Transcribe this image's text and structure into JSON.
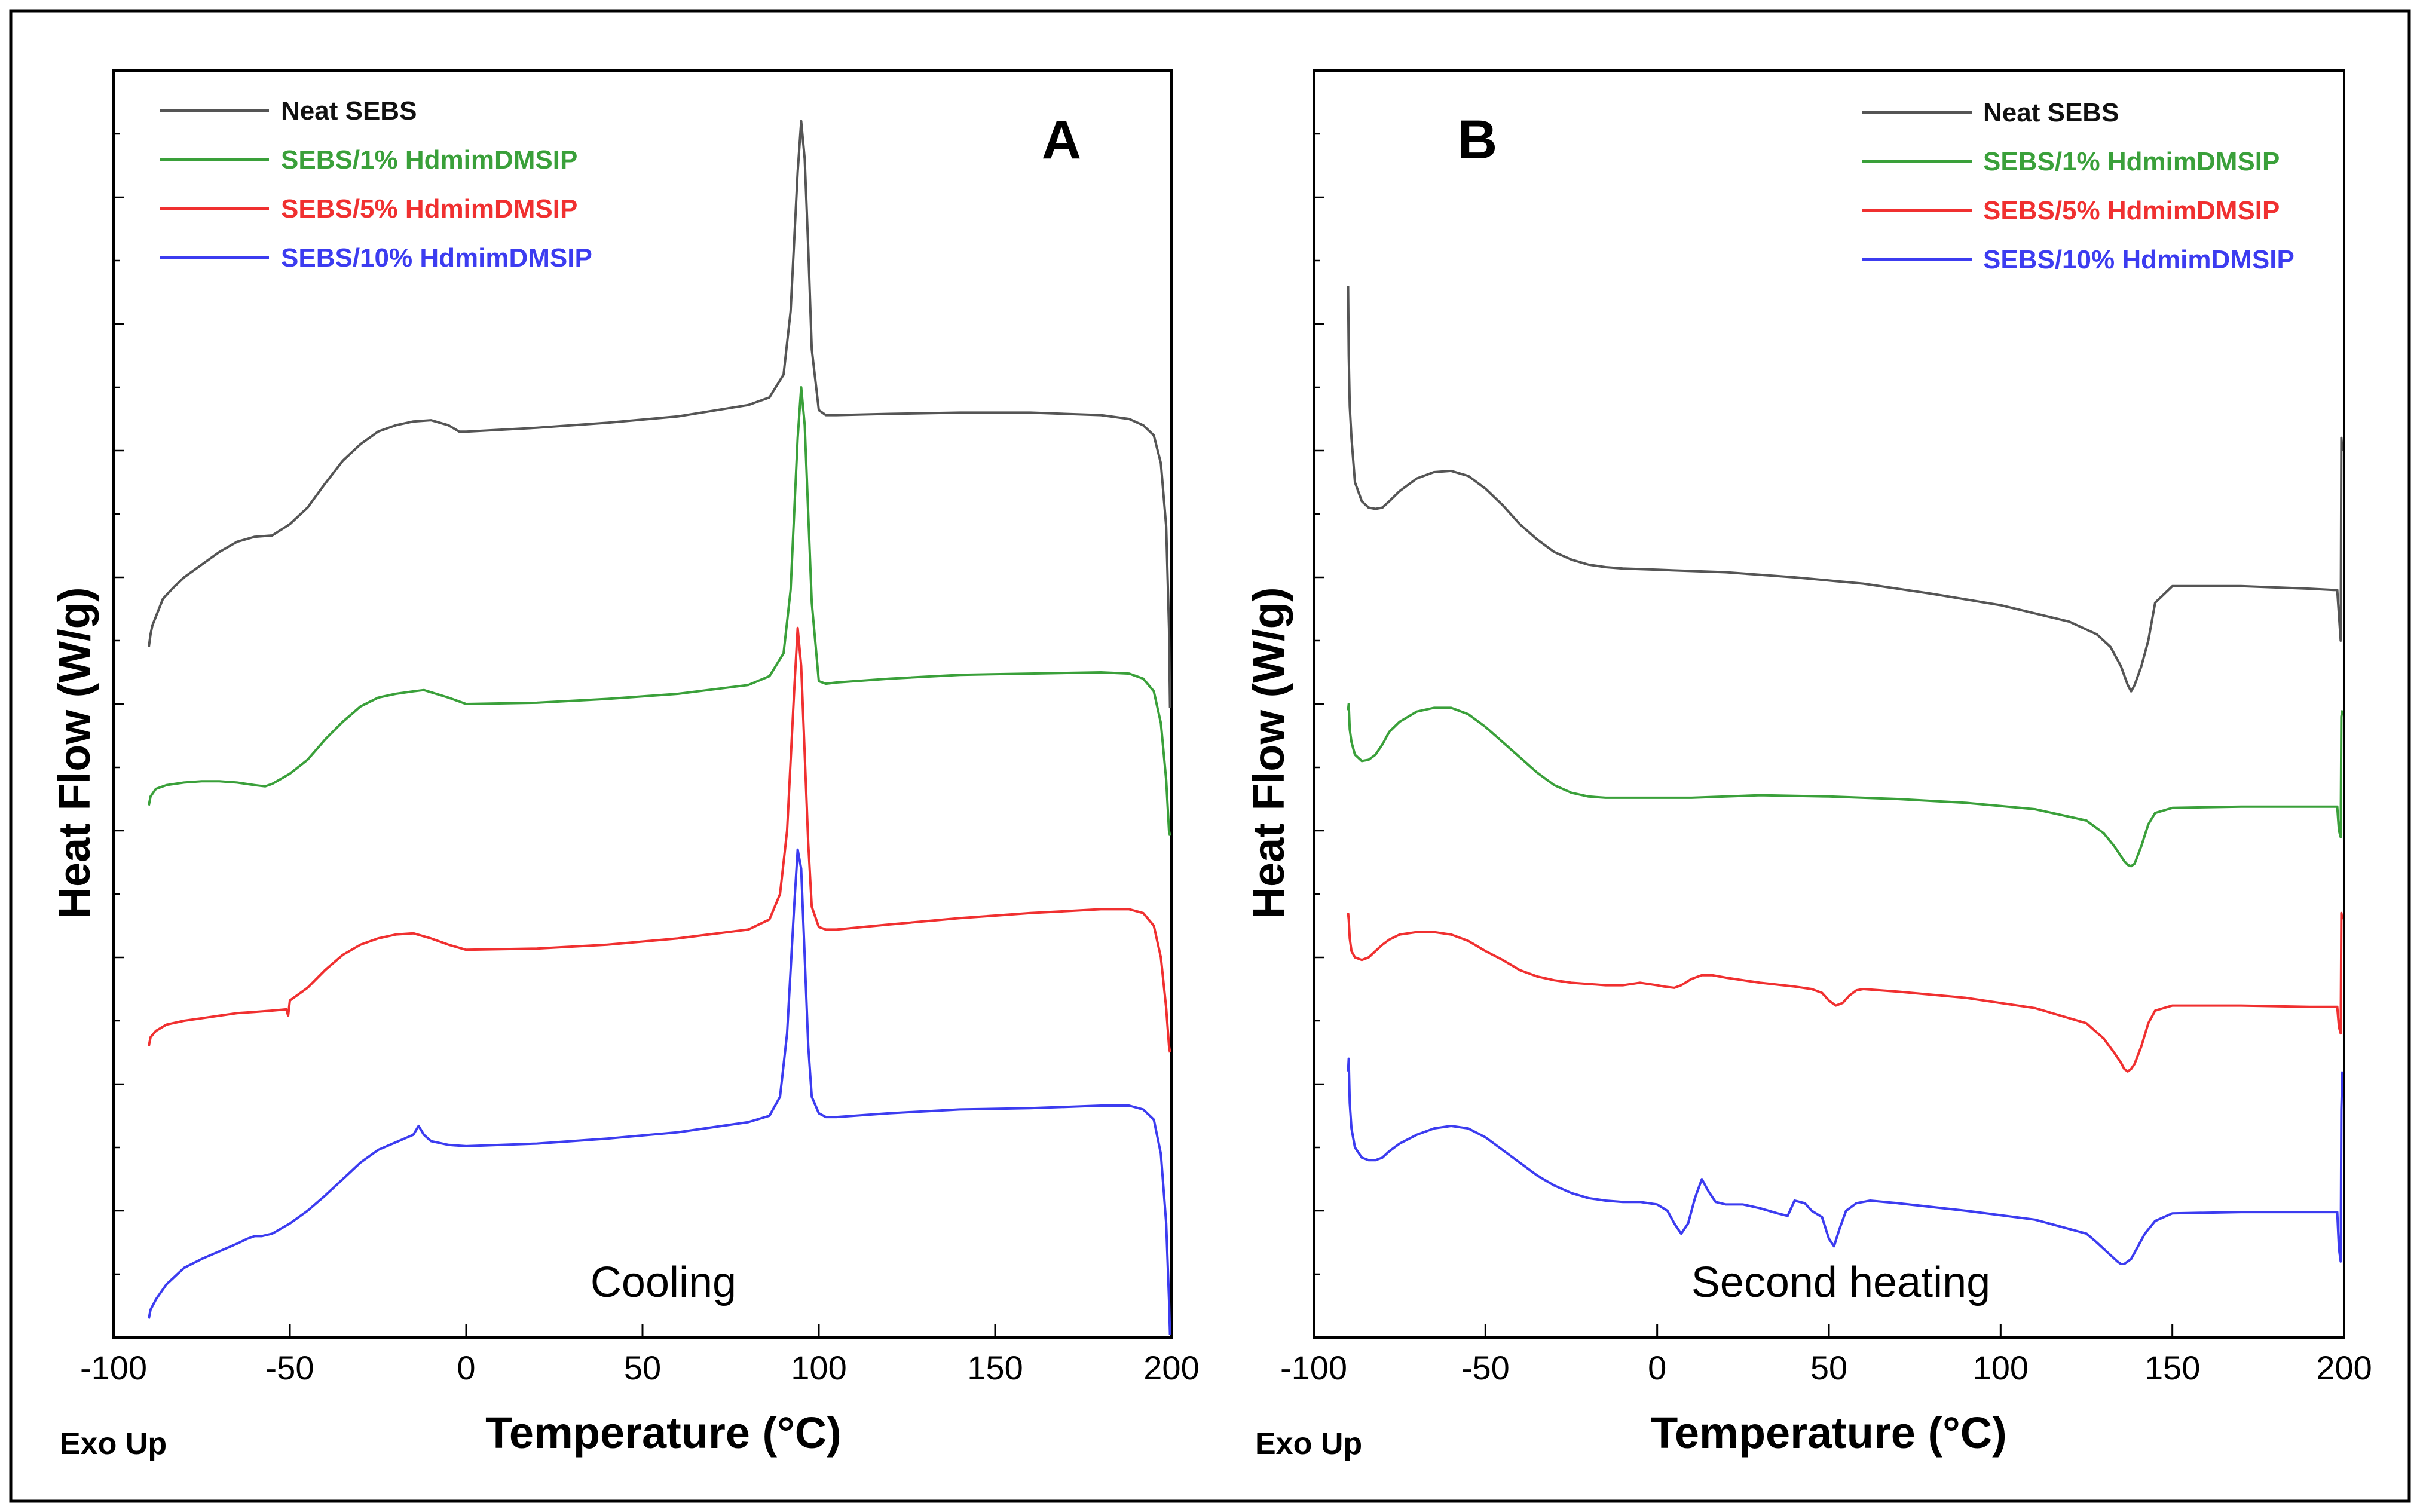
{
  "figure": {
    "ylabel": "Heat Flow (W/g)",
    "xlabel": "Temperature (°C)",
    "exo_label": "Exo Up"
  },
  "chart_data": [
    {
      "type": "line",
      "panel": "A",
      "annotation": "Cooling",
      "xlabel": "Temperature (°C)",
      "ylabel": "Heat Flow (W/g)",
      "xlim": [
        -100,
        200
      ],
      "xticks": [
        -100,
        -50,
        0,
        50,
        100,
        150,
        200
      ],
      "ylim": [
        0,
        10
      ],
      "y_ticks_labeled": false,
      "legend_position": "top-left",
      "series": [
        {
          "name": "Neat SEBS",
          "color": "#555555",
          "x": [
            -90,
            -89.5,
            -89,
            -86,
            -83,
            -80,
            -75,
            -70,
            -65,
            -60,
            -55,
            -50,
            -45,
            -40,
            -35,
            -30,
            -25,
            -20,
            -15,
            -10,
            -5,
            -2,
            0,
            20,
            40,
            60,
            80,
            86,
            90,
            92,
            94,
            95,
            96,
            97,
            98,
            100,
            102,
            105,
            120,
            140,
            160,
            180,
            188,
            192,
            195,
            197,
            198.5,
            199.3,
            199.6
          ],
          "y": [
            5.45,
            5.55,
            5.62,
            5.83,
            5.92,
            6.0,
            6.1,
            6.2,
            6.28,
            6.32,
            6.33,
            6.42,
            6.55,
            6.74,
            6.92,
            7.05,
            7.15,
            7.2,
            7.23,
            7.24,
            7.2,
            7.15,
            7.15,
            7.18,
            7.22,
            7.27,
            7.36,
            7.42,
            7.6,
            8.1,
            9.2,
            9.6,
            9.3,
            8.6,
            7.8,
            7.32,
            7.28,
            7.28,
            7.29,
            7.3,
            7.3,
            7.28,
            7.25,
            7.2,
            7.12,
            6.9,
            6.4,
            5.6,
            4.97
          ]
        },
        {
          "name": "SEBS/1% HdmimDMSIP",
          "color": "#3aa03a",
          "x": [
            -90,
            -89.5,
            -88,
            -85,
            -80,
            -75,
            -70,
            -65,
            -60,
            -57,
            -55,
            -50,
            -45,
            -40,
            -35,
            -30,
            -25,
            -20,
            -15,
            -12,
            -5,
            0,
            20,
            40,
            60,
            80,
            86,
            90,
            92,
            94,
            95,
            96,
            97,
            98,
            100,
            102,
            105,
            120,
            140,
            160,
            180,
            188,
            192,
            195,
            197,
            198.5,
            199.3,
            199.6
          ],
          "y": [
            4.2,
            4.27,
            4.33,
            4.36,
            4.38,
            4.39,
            4.39,
            4.38,
            4.36,
            4.35,
            4.37,
            4.45,
            4.56,
            4.72,
            4.86,
            4.98,
            5.05,
            5.08,
            5.1,
            5.11,
            5.05,
            5.0,
            5.01,
            5.04,
            5.08,
            5.15,
            5.22,
            5.4,
            5.9,
            7.1,
            7.5,
            7.2,
            6.5,
            5.8,
            5.18,
            5.16,
            5.17,
            5.2,
            5.23,
            5.24,
            5.25,
            5.24,
            5.2,
            5.1,
            4.85,
            4.4,
            4.0,
            3.96
          ]
        },
        {
          "name": "SEBS/5% HdmimDMSIP",
          "color": "#f03030",
          "x": [
            -90,
            -89.5,
            -88,
            -85,
            -80,
            -75,
            -70,
            -65,
            -60,
            -55,
            -51,
            -50.5,
            -50,
            -45,
            -40,
            -35,
            -30,
            -25,
            -20,
            -15,
            -10,
            -5,
            0,
            20,
            40,
            60,
            80,
            86,
            89,
            91,
            93,
            94,
            95,
            96,
            97,
            98,
            100,
            102,
            105,
            120,
            140,
            160,
            180,
            188,
            192,
            195,
            197,
            198.5,
            199.3,
            199.6
          ],
          "y": [
            2.3,
            2.37,
            2.42,
            2.47,
            2.5,
            2.52,
            2.54,
            2.56,
            2.57,
            2.58,
            2.59,
            2.54,
            2.66,
            2.76,
            2.9,
            3.02,
            3.1,
            3.15,
            3.18,
            3.19,
            3.15,
            3.1,
            3.06,
            3.07,
            3.1,
            3.15,
            3.22,
            3.3,
            3.5,
            4.0,
            5.1,
            5.6,
            5.3,
            4.6,
            3.9,
            3.4,
            3.24,
            3.22,
            3.22,
            3.26,
            3.31,
            3.35,
            3.38,
            3.38,
            3.35,
            3.25,
            3.0,
            2.6,
            2.3,
            2.25
          ]
        },
        {
          "name": "SEBS/10% HdmimDMSIP",
          "color": "#3c3cf0",
          "x": [
            -90,
            -89.5,
            -88,
            -85,
            -80,
            -75,
            -70,
            -65,
            -62,
            -60,
            -58,
            -55,
            -50,
            -45,
            -40,
            -35,
            -30,
            -25,
            -20,
            -15,
            -13.5,
            -12,
            -10,
            -5,
            0,
            20,
            40,
            60,
            80,
            86,
            89,
            91,
            93,
            94,
            95,
            96,
            97,
            98,
            100,
            102,
            105,
            120,
            140,
            160,
            180,
            188,
            192,
            195,
            197,
            198.5,
            199.3,
            199.6
          ],
          "y": [
            0.15,
            0.22,
            0.3,
            0.42,
            0.55,
            0.62,
            0.68,
            0.74,
            0.78,
            0.8,
            0.8,
            0.82,
            0.9,
            1.0,
            1.12,
            1.25,
            1.38,
            1.48,
            1.54,
            1.6,
            1.67,
            1.6,
            1.55,
            1.52,
            1.51,
            1.53,
            1.57,
            1.62,
            1.7,
            1.75,
            1.9,
            2.4,
            3.4,
            3.85,
            3.7,
            3.0,
            2.3,
            1.9,
            1.77,
            1.74,
            1.74,
            1.77,
            1.8,
            1.81,
            1.83,
            1.83,
            1.8,
            1.72,
            1.45,
            0.9,
            0.3,
            0.02
          ]
        }
      ]
    },
    {
      "type": "line",
      "panel": "B",
      "annotation": "Second heating",
      "xlabel": "Temperature (°C)",
      "ylabel": "Heat Flow (W/g)",
      "xlim": [
        -100,
        200
      ],
      "xticks": [
        -100,
        -50,
        0,
        50,
        100,
        150,
        200
      ],
      "ylim": [
        0,
        10
      ],
      "y_ticks_labeled": false,
      "legend_position": "top-right",
      "series": [
        {
          "name": "Neat SEBS",
          "color": "#555555",
          "x": [
            -90,
            -89.8,
            -89.5,
            -89,
            -88,
            -86,
            -84,
            -82,
            -80,
            -78,
            -75,
            -70,
            -65,
            -60,
            -55,
            -50,
            -45,
            -40,
            -35,
            -30,
            -25,
            -20,
            -15,
            -10,
            0,
            20,
            40,
            60,
            80,
            100,
            120,
            128,
            132,
            135,
            137,
            138,
            139,
            141,
            143,
            145,
            150,
            170,
            190,
            197,
            198,
            198.5,
            199,
            199.2,
            199.5
          ],
          "y": [
            8.3,
            7.75,
            7.35,
            7.1,
            6.75,
            6.6,
            6.55,
            6.54,
            6.55,
            6.6,
            6.68,
            6.78,
            6.83,
            6.84,
            6.8,
            6.7,
            6.57,
            6.42,
            6.3,
            6.2,
            6.14,
            6.1,
            6.08,
            6.07,
            6.06,
            6.04,
            6.0,
            5.95,
            5.87,
            5.78,
            5.65,
            5.55,
            5.45,
            5.3,
            5.15,
            5.1,
            5.15,
            5.3,
            5.5,
            5.8,
            5.93,
            5.93,
            5.91,
            5.9,
            5.9,
            5.7,
            5.5,
            7.1,
            7.0
          ]
        },
        {
          "name": "SEBS/1% HdmimDMSIP",
          "color": "#3aa03a",
          "x": [
            -90,
            -89.8,
            -89.5,
            -89,
            -88,
            -86,
            -84,
            -82,
            -80,
            -78,
            -75,
            -70,
            -65,
            -60,
            -55,
            -50,
            -45,
            -40,
            -35,
            -30,
            -25,
            -20,
            -15,
            -10,
            0,
            10,
            20,
            30,
            50,
            70,
            90,
            110,
            125,
            130,
            133,
            135,
            136,
            137,
            138,
            139,
            141,
            143,
            145,
            150,
            170,
            190,
            197,
            198,
            198.5,
            199,
            199.2,
            199.5
          ],
          "y": [
            4.95,
            5.0,
            4.8,
            4.7,
            4.6,
            4.55,
            4.56,
            4.6,
            4.68,
            4.78,
            4.86,
            4.94,
            4.97,
            4.97,
            4.92,
            4.82,
            4.7,
            4.58,
            4.46,
            4.36,
            4.3,
            4.27,
            4.26,
            4.26,
            4.26,
            4.26,
            4.27,
            4.28,
            4.27,
            4.25,
            4.22,
            4.17,
            4.08,
            3.98,
            3.88,
            3.8,
            3.76,
            3.73,
            3.72,
            3.74,
            3.88,
            4.05,
            4.14,
            4.18,
            4.19,
            4.19,
            4.19,
            4.19,
            4.0,
            3.95,
            4.9,
            4.95
          ]
        },
        {
          "name": "SEBS/5% HdmimDMSIP",
          "color": "#f03030",
          "x": [
            -90,
            -89.8,
            -89.5,
            -89,
            -88,
            -86,
            -84,
            -82,
            -80,
            -78,
            -75,
            -70,
            -65,
            -60,
            -55,
            -50,
            -45,
            -40,
            -35,
            -30,
            -25,
            -20,
            -15,
            -10,
            -5,
            0,
            2,
            5,
            7,
            10,
            13,
            16,
            20,
            30,
            40,
            45,
            48,
            50,
            52,
            54,
            56,
            58,
            60,
            70,
            90,
            110,
            125,
            130,
            133,
            135,
            136,
            137,
            138,
            139,
            141,
            143,
            145,
            150,
            170,
            190,
            197,
            198,
            198.5,
            199,
            199.2,
            199.5
          ],
          "y": [
            3.35,
            3.3,
            3.15,
            3.05,
            3.0,
            2.98,
            3.0,
            3.05,
            3.1,
            3.14,
            3.18,
            3.2,
            3.2,
            3.18,
            3.13,
            3.05,
            2.98,
            2.9,
            2.85,
            2.82,
            2.8,
            2.79,
            2.78,
            2.78,
            2.8,
            2.78,
            2.77,
            2.76,
            2.78,
            2.83,
            2.86,
            2.86,
            2.84,
            2.8,
            2.77,
            2.75,
            2.72,
            2.66,
            2.62,
            2.64,
            2.7,
            2.74,
            2.75,
            2.73,
            2.68,
            2.6,
            2.48,
            2.36,
            2.25,
            2.17,
            2.12,
            2.1,
            2.12,
            2.16,
            2.3,
            2.48,
            2.58,
            2.62,
            2.62,
            2.61,
            2.61,
            2.61,
            2.45,
            2.4,
            3.35,
            3.3
          ]
        },
        {
          "name": "SEBS/10% HdmimDMSIP",
          "color": "#3c3cf0",
          "x": [
            -90,
            -89.8,
            -89.5,
            -89,
            -88,
            -86,
            -84,
            -82,
            -80,
            -78,
            -75,
            -70,
            -65,
            -60,
            -55,
            -50,
            -45,
            -40,
            -35,
            -30,
            -25,
            -20,
            -15,
            -10,
            -5,
            0,
            3,
            5,
            7,
            9,
            11,
            13,
            15,
            17,
            20,
            25,
            30,
            35,
            38,
            40,
            43,
            45,
            48,
            50,
            51.5,
            53,
            55,
            58,
            62,
            70,
            90,
            110,
            125,
            128,
            132,
            134,
            135,
            136,
            138,
            140,
            142,
            145,
            150,
            170,
            190,
            197,
            198,
            198.5,
            199,
            199.2,
            199.5
          ],
          "y": [
            2.1,
            2.2,
            1.85,
            1.65,
            1.5,
            1.42,
            1.4,
            1.4,
            1.42,
            1.47,
            1.53,
            1.6,
            1.65,
            1.67,
            1.65,
            1.58,
            1.48,
            1.38,
            1.28,
            1.2,
            1.14,
            1.1,
            1.08,
            1.07,
            1.07,
            1.05,
            1.0,
            0.9,
            0.82,
            0.9,
            1.1,
            1.25,
            1.15,
            1.07,
            1.05,
            1.05,
            1.02,
            0.98,
            0.96,
            1.08,
            1.06,
            1.0,
            0.95,
            0.78,
            0.72,
            0.85,
            1.0,
            1.06,
            1.08,
            1.06,
            1.0,
            0.93,
            0.82,
            0.75,
            0.65,
            0.6,
            0.58,
            0.58,
            0.62,
            0.72,
            0.82,
            0.92,
            0.98,
            0.99,
            0.99,
            0.99,
            0.99,
            0.7,
            0.6,
            1.8,
            2.1
          ]
        }
      ]
    }
  ]
}
